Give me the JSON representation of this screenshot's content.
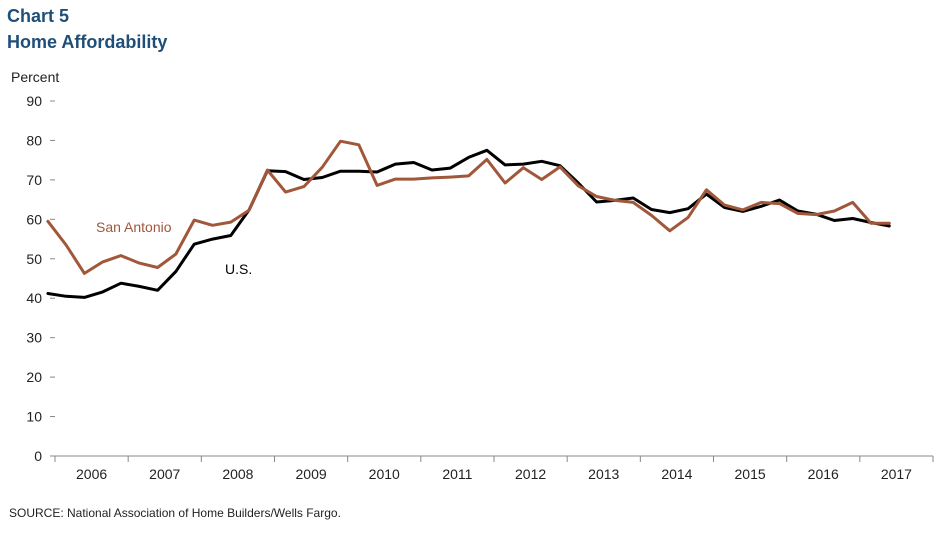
{
  "header": {
    "chart_number": "Chart 5",
    "title": "Home Affordability"
  },
  "source": "SOURCE: National Association of Home Builders/Wells Fargo.",
  "chart_data": {
    "type": "line",
    "title": "Home Affordability",
    "ylabel": "Percent",
    "xlabel": "",
    "ylim": [
      0,
      90
    ],
    "yticks": [
      0,
      10,
      20,
      30,
      40,
      50,
      60,
      70,
      80,
      90
    ],
    "x_tick_labels": [
      "2006",
      "2007",
      "2008",
      "2009",
      "2010",
      "2011",
      "2012",
      "2013",
      "2014",
      "2015",
      "2016",
      "2017"
    ],
    "grid": false,
    "legend": "inline labels",
    "x_start": "2005 Q4",
    "series": [
      {
        "name": "San Antonio",
        "color": "#a0573a",
        "values": [
          59.5,
          53.5,
          46.3,
          49.2,
          50.8,
          48.9,
          47.8,
          51.2,
          59.8,
          58.5,
          59.3,
          62.3,
          72.5,
          66.9,
          68.3,
          73.2,
          79.8,
          78.9,
          68.6,
          70.2,
          70.2,
          70.5,
          70.7,
          71.0,
          75.2,
          69.2,
          73.1,
          70.1,
          73.3,
          68.5,
          65.8,
          64.8,
          64.3,
          61.0,
          57.1,
          60.5,
          67.5,
          63.6,
          62.4,
          64.3,
          64.0,
          61.5,
          61.2,
          62.1,
          64.3,
          59.0,
          59.0
        ]
      },
      {
        "name": "U.S.",
        "color": "#000000",
        "values": [
          41.2,
          40.5,
          40.2,
          41.6,
          43.8,
          43.0,
          42.0,
          46.8,
          53.7,
          55.0,
          55.9,
          62.4,
          72.3,
          72.1,
          70.1,
          70.6,
          72.2,
          72.2,
          72.0,
          74.0,
          74.4,
          72.5,
          73.0,
          75.7,
          77.5,
          73.8,
          74.0,
          74.7,
          73.6,
          69.2,
          64.4,
          64.8,
          65.4,
          62.5,
          61.7,
          62.7,
          66.4,
          63.0,
          62.0,
          63.3,
          64.9,
          62.1,
          61.3,
          59.7,
          60.2,
          59.2,
          58.3
        ]
      }
    ]
  }
}
